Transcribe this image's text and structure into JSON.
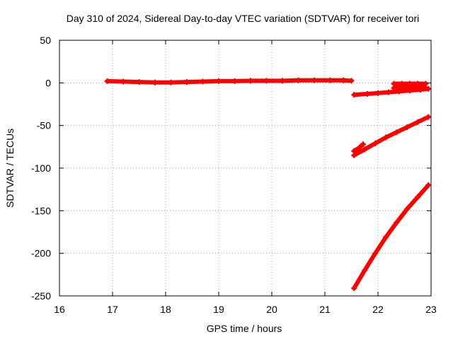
{
  "chart_data": {
    "type": "scatter",
    "title": "Day 310 of 2024, Sidereal Day-to-day VTEC variation (SDTVAR) for receiver tori",
    "xlabel": "GPS time / hours",
    "ylabel": "SDTVAR / TECUs",
    "xlim": [
      16,
      23
    ],
    "ylim": [
      -250,
      50
    ],
    "xticks": [
      16,
      17,
      18,
      19,
      20,
      21,
      22,
      23
    ],
    "yticks": [
      50,
      0,
      -50,
      -100,
      -150,
      -200,
      -250
    ],
    "grid": true,
    "marker_color": "#ff0000",
    "series": [
      {
        "x": [
          16.9,
          17.2,
          17.5,
          17.8,
          18.1,
          18.4,
          18.7,
          19.0,
          19.3,
          19.6,
          19.9,
          20.2,
          20.5,
          20.8,
          21.1,
          21.35,
          21.5
        ],
        "y": [
          2,
          1.5,
          1,
          0.5,
          0.5,
          1,
          1.5,
          2,
          2,
          2.5,
          2.5,
          2.5,
          3,
          3,
          3,
          3,
          2.5
        ]
      },
      {
        "x": [
          21.55,
          21.8,
          22.0,
          22.2,
          22.4,
          22.6,
          22.8,
          22.95
        ],
        "y": [
          -14,
          -13,
          -12,
          -11,
          -10,
          -9,
          -8,
          -7
        ]
      },
      {
        "x": [
          22.3,
          22.45,
          22.6,
          22.75,
          22.9,
          22.3,
          22.45,
          22.6,
          22.75,
          22.9
        ],
        "y": [
          -1,
          -1,
          -1,
          -1,
          -1,
          -6,
          -6,
          -6,
          -6,
          -6
        ]
      },
      {
        "x": [
          21.55,
          21.75,
          21.95,
          22.15,
          22.35,
          22.55,
          22.75,
          22.95
        ],
        "y": [
          -85,
          -78,
          -71,
          -64,
          -58,
          -52,
          -46,
          -40
        ]
      },
      {
        "x": [
          21.55,
          21.65,
          21.72
        ],
        "y": [
          -80,
          -76,
          -72
        ]
      },
      {
        "x": [
          21.55,
          21.75,
          21.95,
          22.15,
          22.35,
          22.55,
          22.75,
          22.95
        ],
        "y": [
          -241,
          -220,
          -200,
          -181,
          -164,
          -148,
          -134,
          -120
        ]
      }
    ]
  }
}
